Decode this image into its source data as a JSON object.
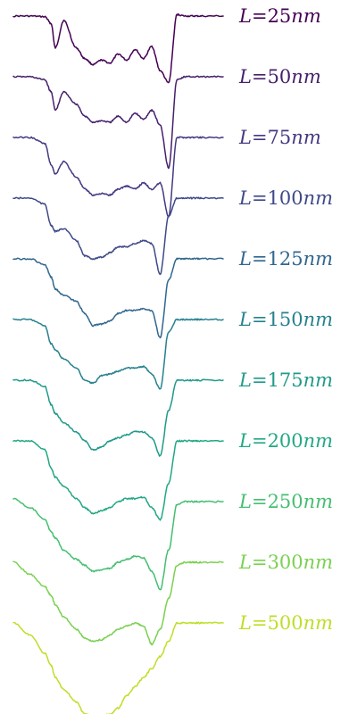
{
  "chart_data": {
    "type": "line",
    "title": "",
    "xlabel": "",
    "ylabel": "",
    "axes_visible": false,
    "grid": false,
    "legend": "inline labels at right end of each trace",
    "x_points": [
      0,
      0.08,
      0.15,
      0.18,
      0.2,
      0.24,
      0.3,
      0.34,
      0.38,
      0.42,
      0.46,
      0.5,
      0.54,
      0.58,
      0.62,
      0.66,
      0.7,
      0.74,
      0.78,
      0.82,
      0.86,
      0.9,
      1.0
    ],
    "series": [
      {
        "label_prefix": "L = ",
        "label_value": "25",
        "label_unit": "nm",
        "color": "#440154",
        "values": [
          0,
          0,
          -0.02,
          -0.25,
          -1.05,
          -0.15,
          -1.05,
          -1.4,
          -1.6,
          -1.45,
          -1.55,
          -1.25,
          -1.45,
          -1.1,
          -1.4,
          -1.0,
          -1.8,
          -2.2,
          0.05,
          0,
          0,
          0,
          0
        ]
      },
      {
        "label_prefix": "L = ",
        "label_value": "50",
        "label_unit": "nm",
        "color": "#46206c",
        "values": [
          0,
          0,
          -0.1,
          -0.5,
          -1.1,
          -0.5,
          -0.9,
          -1.3,
          -1.5,
          -1.45,
          -1.5,
          -1.3,
          -1.5,
          -1.2,
          -1.4,
          -1.1,
          -1.6,
          -3.0,
          -0.1,
          0,
          0,
          0,
          0
        ]
      },
      {
        "label_prefix": "L = ",
        "label_value": "75",
        "label_unit": "nm",
        "color": "#453882",
        "values": [
          0,
          0,
          -0.2,
          -0.9,
          -1.2,
          -0.8,
          -1.3,
          -1.7,
          -1.9,
          -1.85,
          -1.9,
          -1.7,
          -1.6,
          -1.7,
          -1.5,
          -1.7,
          -1.5,
          -2.6,
          0,
          0,
          0,
          0,
          0
        ]
      },
      {
        "label_prefix": "L = ",
        "label_value": "100",
        "label_unit": "nm",
        "color": "#3e4a89",
        "values": [
          0,
          0,
          -0.2,
          -0.9,
          -1.1,
          -1.0,
          -1.4,
          -1.9,
          -2.0,
          -1.95,
          -1.8,
          -1.6,
          -1.6,
          -1.5,
          -1.4,
          -1.5,
          -2.5,
          -0.6,
          0,
          0,
          0,
          0,
          0
        ]
      },
      {
        "label_prefix": "L = ",
        "label_value": "125",
        "label_unit": "nm",
        "color": "#31678e",
        "values": [
          0,
          0,
          -0.2,
          -0.6,
          -1.0,
          -1.2,
          -1.4,
          -1.8,
          -2.2,
          -2.15,
          -2.05,
          -1.8,
          -1.7,
          -1.7,
          -1.65,
          -1.7,
          -2.6,
          -0.7,
          0,
          0,
          0,
          0,
          0
        ]
      },
      {
        "label_prefix": "L = ",
        "label_value": "150",
        "label_unit": "nm",
        "color": "#26818e",
        "values": [
          0,
          0,
          -0.2,
          -0.8,
          -1.0,
          -1.3,
          -1.6,
          -2.0,
          -2.1,
          -1.85,
          -1.8,
          -1.7,
          -1.6,
          -1.6,
          -1.55,
          -1.8,
          -2.3,
          -0.4,
          0,
          0,
          0,
          0,
          0
        ]
      },
      {
        "label_prefix": "L = ",
        "label_value": "175",
        "label_unit": "nm",
        "color": "#1f9a8a",
        "values": [
          0,
          0,
          -0.2,
          -0.8,
          -1.1,
          -1.4,
          -1.7,
          -2.0,
          -2.3,
          -2.2,
          -2.0,
          -1.9,
          -1.8,
          -1.7,
          -1.7,
          -1.9,
          -2.5,
          -1.0,
          0,
          0,
          0,
          0,
          0
        ]
      },
      {
        "label_prefix": "L = ",
        "label_value": "200",
        "label_unit": "nm",
        "color": "#22a884",
        "values": [
          0,
          0,
          -0.3,
          -0.9,
          -1.2,
          -1.5,
          -1.9,
          -2.2,
          -2.4,
          -2.3,
          -2.2,
          -2.0,
          -1.9,
          -1.9,
          -1.85,
          -2.2,
          -2.6,
          -1.4,
          0,
          0,
          0,
          0,
          0
        ]
      },
      {
        "label_prefix": "L = ",
        "label_value": "250",
        "label_unit": "nm",
        "color": "#44bf70",
        "values": [
          0.1,
          -0.2,
          -0.6,
          -1.0,
          -1.2,
          -1.6,
          -1.9,
          -2.1,
          -2.3,
          -2.25,
          -2.2,
          -2.0,
          -1.9,
          -1.8,
          -1.85,
          -2.3,
          -2.9,
          -1.6,
          -0.1,
          0,
          0,
          0,
          0
        ]
      },
      {
        "label_prefix": "L = ",
        "label_value": "300",
        "label_unit": "nm",
        "color": "#7ad151",
        "values": [
          0.0,
          -0.4,
          -0.8,
          -1.1,
          -1.4,
          -1.8,
          -2.2,
          -2.5,
          -2.6,
          -2.55,
          -2.4,
          -2.2,
          -2.1,
          -2.0,
          -2.1,
          -2.7,
          -2.2,
          -1.2,
          -0.1,
          0,
          0,
          0,
          0
        ]
      },
      {
        "label_prefix": "L = ",
        "label_value": "500",
        "label_unit": "nm",
        "color": "#bddf26",
        "values": [
          0,
          -0.4,
          -1.0,
          -1.4,
          -1.8,
          -2.2,
          -2.6,
          -3.0,
          -3.05,
          -3.1,
          -3.0,
          -2.8,
          -2.4,
          -2.1,
          -1.8,
          -1.5,
          -1.1,
          -0.6,
          0,
          0,
          0,
          0,
          0
        ]
      }
    ]
  }
}
